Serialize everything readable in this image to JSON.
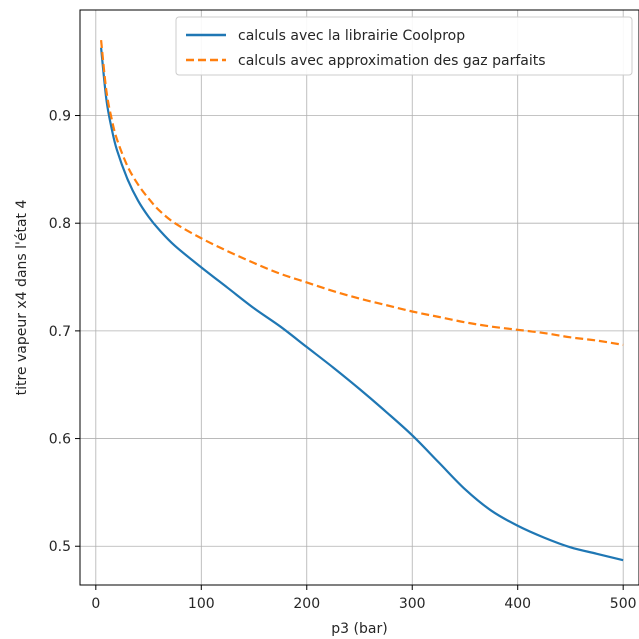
{
  "chart_data": {
    "type": "line",
    "title": "",
    "xlabel": "p3 (bar)",
    "ylabel": "titre vapeur x4 dans l'état 4",
    "xlim": [
      -15,
      515
    ],
    "ylim": [
      0.464,
      0.998
    ],
    "xticks": [
      0,
      100,
      200,
      300,
      400,
      500
    ],
    "yticks": [
      0.5,
      0.6,
      0.7,
      0.8,
      0.9
    ],
    "grid": true,
    "legend_position": "top-right",
    "series": [
      {
        "name": "calculs avec la librairie Coolprop",
        "color": "#1f77b4",
        "style": "solid",
        "x": [
          5,
          10,
          15,
          20,
          30,
          40,
          50,
          60,
          75,
          100,
          125,
          150,
          175,
          200,
          225,
          250,
          275,
          300,
          325,
          350,
          375,
          400,
          425,
          450,
          475,
          500
        ],
        "y": [
          0.963,
          0.915,
          0.888,
          0.868,
          0.841,
          0.821,
          0.806,
          0.794,
          0.779,
          0.759,
          0.74,
          0.721,
          0.704,
          0.685,
          0.666,
          0.646,
          0.625,
          0.603,
          0.578,
          0.553,
          0.533,
          0.519,
          0.508,
          0.499,
          0.493,
          0.487
        ]
      },
      {
        "name": "calculs avec approximation des gaz parfaits",
        "color": "#ff7f0e",
        "style": "dashed",
        "x": [
          5,
          10,
          15,
          20,
          30,
          40,
          50,
          60,
          75,
          100,
          125,
          150,
          175,
          200,
          225,
          250,
          275,
          300,
          325,
          350,
          375,
          400,
          425,
          450,
          475,
          500
        ],
        "y": [
          0.97,
          0.923,
          0.897,
          0.878,
          0.853,
          0.836,
          0.823,
          0.812,
          0.8,
          0.786,
          0.774,
          0.763,
          0.753,
          0.745,
          0.737,
          0.73,
          0.724,
          0.718,
          0.713,
          0.708,
          0.704,
          0.701,
          0.698,
          0.694,
          0.691,
          0.687
        ]
      }
    ]
  }
}
